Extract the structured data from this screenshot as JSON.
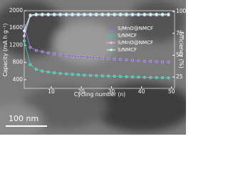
{
  "chart_data": {
    "type": "line",
    "x_label": "Cycling number (n)",
    "y_label": "Capacity (mA h g⁻¹)",
    "y2_label": "Efficiency (%)",
    "annotations": [
      "100 nm"
    ],
    "x": [
      1,
      3,
      5,
      7,
      9,
      11,
      13,
      15,
      17,
      19,
      21,
      23,
      25,
      27,
      29,
      31,
      33,
      35,
      37,
      39,
      41,
      43,
      45,
      47,
      49
    ],
    "xlim": [
      1,
      51
    ],
    "xticks": [
      10,
      20,
      30,
      40,
      50
    ],
    "ylim": [
      200,
      2000
    ],
    "yticks": [
      400,
      800,
      1200,
      1600,
      2000
    ],
    "y2lim": [
      12,
      101
    ],
    "y2ticks": [
      25,
      50,
      75,
      100
    ],
    "legend": "center-right",
    "series": [
      {
        "name": "S/MnO@NMCF",
        "color": "#8a6cc8",
        "values": [
          1650,
          1150,
          1080,
          1050,
          1020,
          1000,
          980,
          960,
          950,
          940,
          930,
          920,
          910,
          900,
          890,
          880,
          870,
          860,
          850,
          840,
          830,
          825,
          820,
          815,
          810
        ]
      },
      {
        "name": "S/NMCF",
        "color": "#3cc4b0",
        "values": [
          1300,
          750,
          640,
          600,
          580,
          560,
          545,
          535,
          525,
          515,
          505,
          500,
          495,
          490,
          485,
          480,
          475,
          470,
          465,
          460,
          455,
          452,
          450,
          448,
          445
        ]
      },
      {
        "name": "S/MnO@NMCF",
        "color": "#d2c2f0",
        "axis": "y2",
        "values": [
          72,
          95,
          96,
          96,
          96,
          96,
          96,
          96,
          96,
          96,
          96,
          96,
          96,
          96,
          96,
          96,
          96,
          96,
          96,
          96,
          96,
          96,
          96,
          96,
          96
        ]
      },
      {
        "name": "S/NMCF",
        "color": "#c4f4ea",
        "axis": "y2",
        "values": [
          78,
          96,
          97,
          97,
          97,
          97,
          97,
          97,
          97,
          97,
          97,
          97,
          97,
          97,
          97,
          97,
          97,
          97,
          97,
          97,
          97,
          97,
          97,
          97,
          97
        ]
      }
    ]
  }
}
